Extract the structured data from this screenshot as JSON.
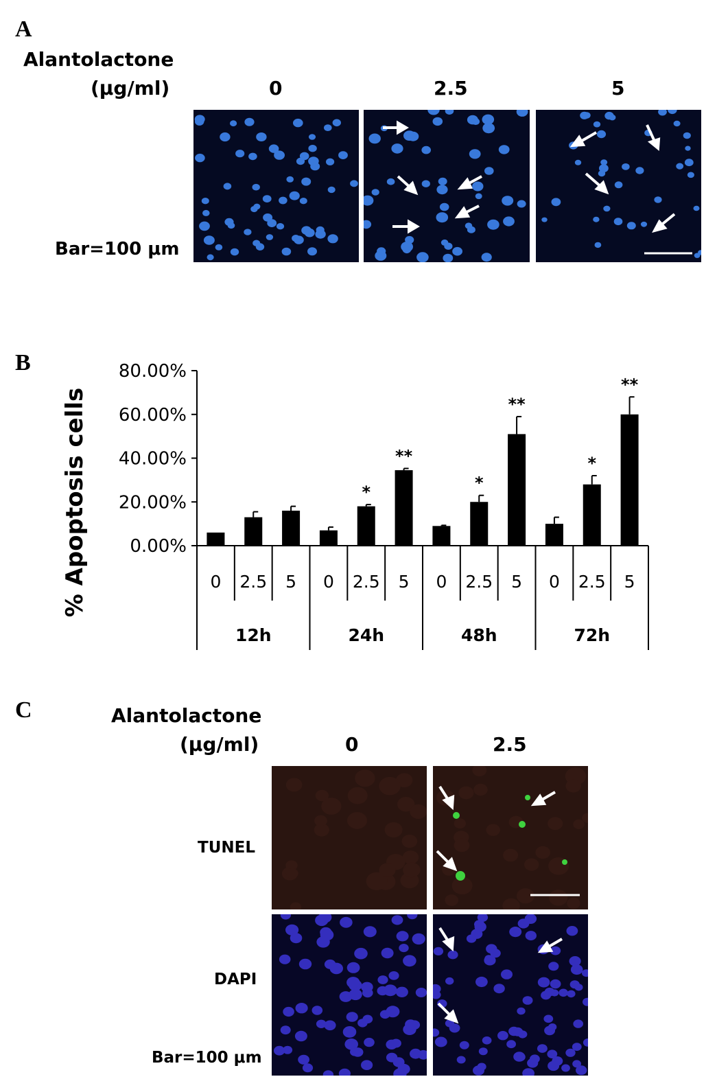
{
  "panel_a": {
    "label": "A",
    "treatment_line1": "Alantolactone",
    "treatment_line2": "(μg/ml)",
    "concentrations": [
      "0",
      "2.5",
      "5"
    ],
    "scale_text": "Bar=100 μm",
    "stain_color": "#3f86f0",
    "background_color": "#050a22"
  },
  "panel_b": {
    "label": "B"
  },
  "panel_c": {
    "label": "C",
    "treatment_line1": "Alantolactone",
    "treatment_line2": "(μg/ml)",
    "concentrations": [
      "0",
      "2.5"
    ],
    "row_tunel": "TUNEL",
    "row_dapi": "DAPI",
    "scale_text": "Bar=100 μm",
    "tunel_background_color": "#2a1510",
    "tunel_positive_color": "#3fd23f",
    "dapi_color": "#3c35d8"
  },
  "chart_data": {
    "type": "bar",
    "ylabel": "% Apoptosis cells",
    "ylim": [
      0,
      0.8
    ],
    "yticks": [
      "0.00%",
      "20.00%",
      "40.00%",
      "60.00%",
      "80.00%"
    ],
    "groups": [
      "12h",
      "24h",
      "48h",
      "72h"
    ],
    "categories": [
      "0",
      "2.5",
      "5",
      "0",
      "2.5",
      "5",
      "0",
      "2.5",
      "5",
      "0",
      "2.5",
      "5"
    ],
    "values": [
      0.06,
      0.13,
      0.16,
      0.07,
      0.18,
      0.345,
      0.09,
      0.2,
      0.51,
      0.1,
      0.28,
      0.6
    ],
    "errors": [
      0.0,
      0.025,
      0.02,
      0.015,
      0.008,
      0.008,
      0.003,
      0.03,
      0.08,
      0.03,
      0.04,
      0.08
    ],
    "significance": [
      "",
      "",
      "",
      "",
      "*",
      "**",
      "",
      "*",
      "**",
      "",
      "*",
      "**"
    ],
    "bar_color": "#000000",
    "grid": false
  }
}
